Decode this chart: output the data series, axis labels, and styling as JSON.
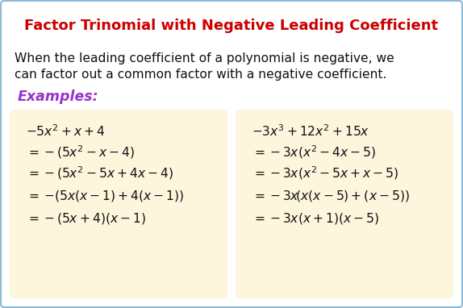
{
  "title": "Factor Trinomial with Negative Leading Coefficient",
  "title_color": "#CC0000",
  "title_fontsize": 13.0,
  "body_text_line1": "When the leading coefficient of a polynomial is negative, we",
  "body_text_line2": "can factor out a common factor with a negative coefficient.",
  "body_fontsize": 11.2,
  "examples_label": "Examples:",
  "examples_color": "#9933CC",
  "examples_fontsize": 12.5,
  "box_facecolor": "#FDF5DC",
  "background_color": "#FFFFFF",
  "border_color": "#8BBBD9",
  "left_box_lines": [
    "$-5x^2+x+4$",
    "$=-(5x^2-x-4)$",
    "$=-(5x^2-5x+4x-4)$",
    "$=-\\!(5x(x-1)+4(x-1))$",
    "$=-(5x+4)(x-1)$"
  ],
  "right_box_lines": [
    "$-3x^3+12x^2+15x$",
    "$=-3x(x^2-4x-5)$",
    "$=-3x(x^2-5x+x-5)$",
    "$=-3x\\!(x(x-5)+(x-5))$",
    "$=-3x(x+1)(x-5)$"
  ],
  "math_fontsize": 11.2,
  "fig_width": 5.74,
  "fig_height": 3.82,
  "dpi": 100
}
